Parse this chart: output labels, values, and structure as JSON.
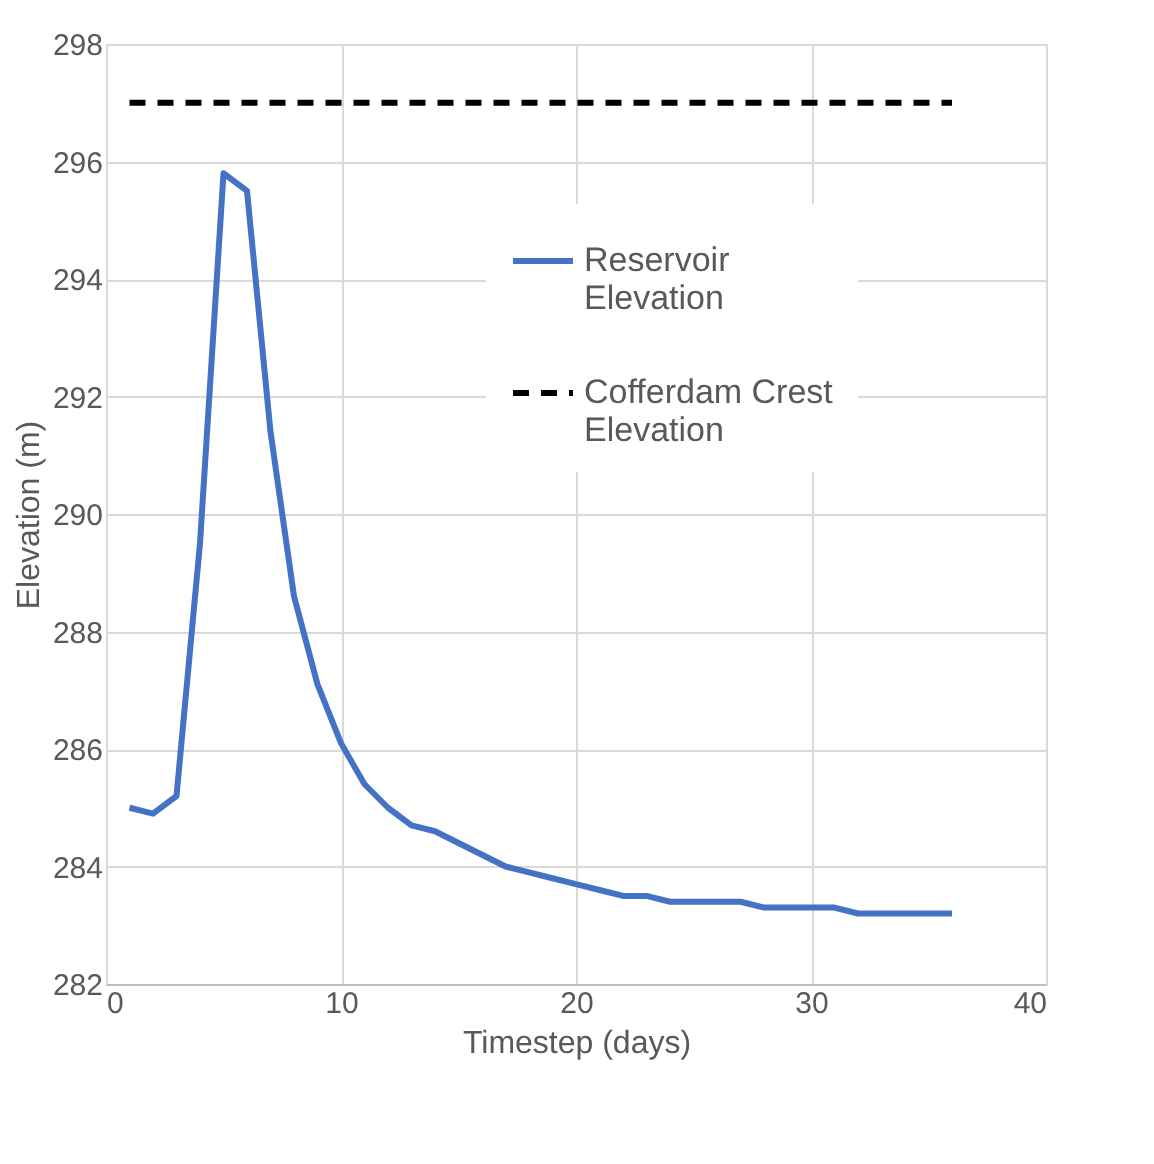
{
  "chart_data": {
    "type": "line",
    "xlabel": "Timestep (days)",
    "ylabel": "Elevation (m)",
    "xlim": [
      0,
      40
    ],
    "xticks": [
      0,
      10,
      20,
      30,
      40
    ],
    "ylim": [
      282,
      298
    ],
    "yticks": [
      282,
      284,
      286,
      288,
      290,
      292,
      294,
      296,
      298
    ],
    "grid": true,
    "legend": "top right",
    "marker": "none",
    "series": [
      {
        "name": "Reservoir Elevation",
        "color": "#4472c4",
        "line_style": "solid",
        "x": [
          1,
          2,
          3,
          4,
          5,
          6,
          7,
          8,
          9,
          10,
          11,
          12,
          13,
          14,
          15,
          16,
          17,
          18,
          19,
          20,
          21,
          22,
          23,
          24,
          25,
          26,
          27,
          28,
          29,
          30,
          31,
          32,
          33,
          34,
          35,
          36
        ],
        "values": [
          285.0,
          284.9,
          285.2,
          289.5,
          295.8,
          295.5,
          291.4,
          288.6,
          287.1,
          286.1,
          285.4,
          285.0,
          284.7,
          284.6,
          284.4,
          284.2,
          284.0,
          283.9,
          283.8,
          283.7,
          283.6,
          283.5,
          283.5,
          283.4,
          283.4,
          283.4,
          283.4,
          283.3,
          283.3,
          283.3,
          283.3,
          283.2,
          283.2,
          283.2,
          283.2,
          283.2
        ]
      },
      {
        "name": "Cofferdam Crest Elevation",
        "color": "#000000",
        "line_style": "dashed",
        "x": [
          1,
          36
        ],
        "values": [
          297,
          297
        ]
      }
    ]
  }
}
